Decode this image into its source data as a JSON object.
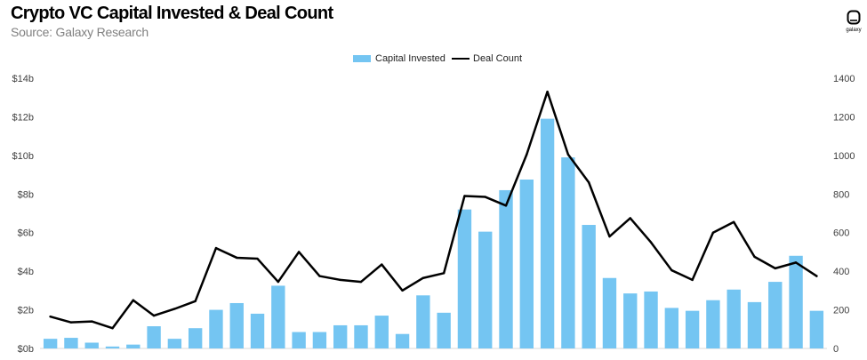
{
  "logo": {
    "text": "galaxy",
    "icon": "galaxy-logo-icon"
  },
  "chart_data": {
    "type": "bar",
    "title": "Crypto VC Capital Invested & Deal Count",
    "subtitle": "Source: Galaxy Research",
    "legend_position": "top",
    "grid": false,
    "series": [
      {
        "name": "Capital Invested",
        "type": "bar",
        "y_axis": "left",
        "color": "#74c5f2",
        "values": [
          0.5,
          0.55,
          0.3,
          0.1,
          0.2,
          1.15,
          0.5,
          1.05,
          2.0,
          2.35,
          1.8,
          3.25,
          0.85,
          0.85,
          1.2,
          1.2,
          1.7,
          0.75,
          2.75,
          1.85,
          7.2,
          6.05,
          8.2,
          8.75,
          11.9,
          9.9,
          6.4,
          3.65,
          2.85,
          2.95,
          2.1,
          1.95,
          2.5,
          3.05,
          2.4,
          3.45,
          4.8,
          1.95
        ]
      },
      {
        "name": "Deal Count",
        "type": "line",
        "y_axis": "right",
        "color": "#000000",
        "values": [
          165,
          135,
          140,
          105,
          250,
          170,
          205,
          245,
          520,
          470,
          465,
          345,
          500,
          375,
          355,
          345,
          435,
          300,
          365,
          390,
          790,
          785,
          740,
          1005,
          1330,
          1005,
          860,
          580,
          675,
          550,
          405,
          355,
          600,
          655,
          475,
          415,
          445,
          375
        ]
      }
    ],
    "y_left": {
      "range": [
        0,
        14
      ],
      "ticks": [
        0,
        2,
        4,
        6,
        8,
        10,
        12,
        14
      ],
      "labels": [
        "$0b",
        "$2b",
        "$4b",
        "$6b",
        "$8b",
        "$10b",
        "$12b",
        "$14b"
      ]
    },
    "y_right": {
      "range": [
        0,
        1400
      ],
      "ticks": [
        0,
        200,
        400,
        600,
        800,
        1000,
        1200,
        1400
      ],
      "labels": [
        "0",
        "200",
        "400",
        "600",
        "800",
        "1000",
        "1200",
        "1400"
      ]
    }
  }
}
